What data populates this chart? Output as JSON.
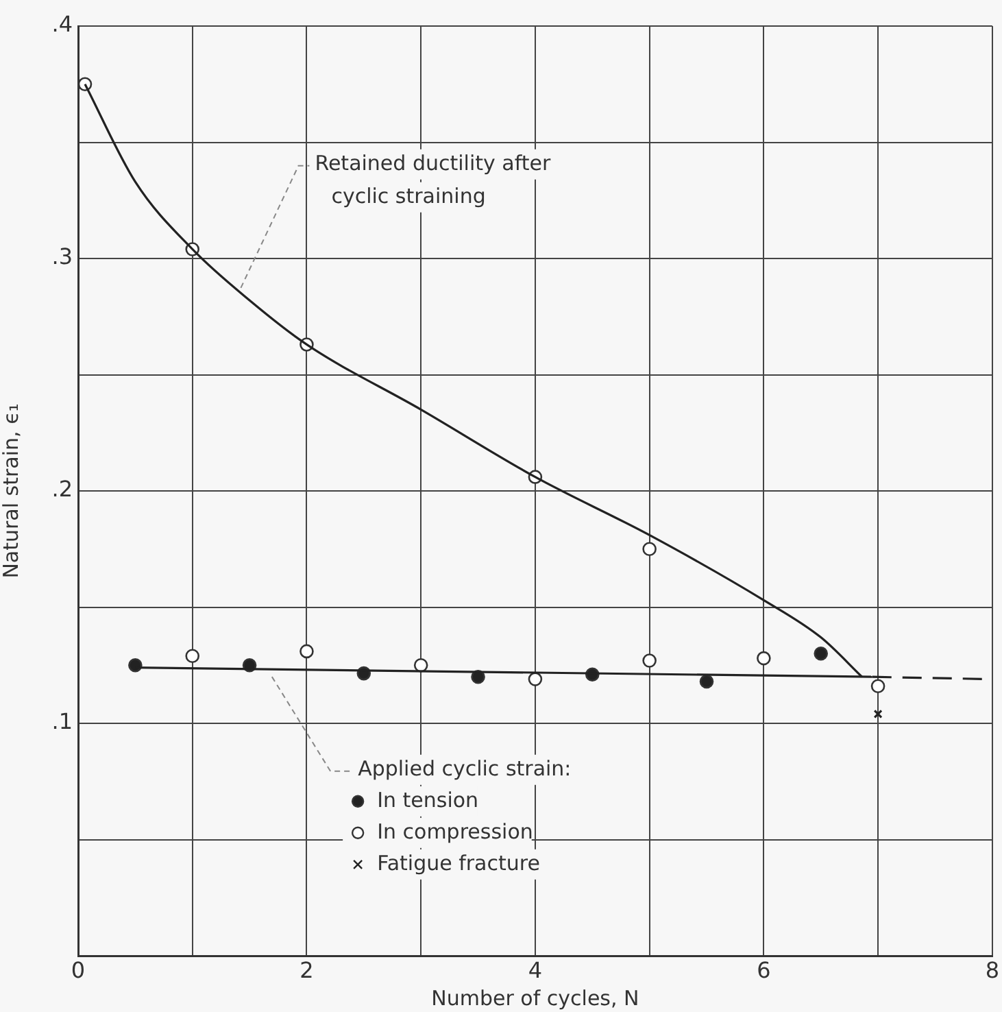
{
  "chart_data": {
    "type": "scatter",
    "xlabel": "Number of cycles, N",
    "ylabel": "Natural strain, ϵ₁",
    "xlim": [
      0,
      8
    ],
    "xticks": [
      0,
      {
        "value": 1,
        "label": null
      },
      2,
      {
        "value": 3,
        "label": null
      },
      4,
      {
        "value": 5,
        "label": null
      },
      6,
      {
        "value": 7,
        "label": null
      },
      8
    ],
    "ylim": [
      0,
      0.4
    ],
    "yticks": [
      {
        "value": 0,
        "label": null
      },
      {
        "value": 0.05,
        "label": null
      },
      {
        "value": 0.1,
        "label": ".1"
      },
      {
        "value": 0.15,
        "label": null
      },
      {
        "value": 0.2,
        "label": ".2"
      },
      {
        "value": 0.25,
        "label": null
      },
      {
        "value": 0.3,
        "label": ".3"
      },
      {
        "value": 0.35,
        "label": null
      },
      {
        "value": 0.4,
        "label": ".4"
      }
    ],
    "grid": true,
    "legend": "bottom",
    "legend_title": "Applied cyclic strain:",
    "annotations": [
      {
        "text": "Retained ductility after cyclic straining",
        "x": 1.4,
        "y": 0.285
      }
    ],
    "series": [
      {
        "type": "line",
        "color": "#222222",
        "marker": "none",
        "line_style": "solid",
        "x": [
          0.06,
          0.5,
          1,
          1.5,
          2,
          3,
          4,
          5,
          6,
          6.5,
          6.86
        ],
        "values": [
          0.375,
          0.333,
          0.304,
          0.282,
          0.263,
          0.235,
          0.206,
          0.181,
          0.153,
          0.137,
          0.12
        ]
      },
      {
        "type": "scatter",
        "color": "#ffffff",
        "marker": "circle",
        "x": [
          0.06,
          1,
          2,
          4,
          5
        ],
        "values": [
          0.375,
          0.304,
          0.263,
          0.206,
          0.175
        ]
      },
      {
        "type": "line",
        "color": "#222222",
        "marker": "none",
        "line_style": "solid",
        "x": [
          0.5,
          6.95
        ],
        "values": [
          0.124,
          0.12
        ]
      },
      {
        "type": "line",
        "color": "#222222",
        "marker": "none",
        "line_style": "dashed",
        "x": [
          6.95,
          8
        ],
        "values": [
          0.12,
          0.119
        ]
      },
      {
        "type": "scatter",
        "name": "In tension",
        "color": "#222222",
        "marker": "circle",
        "x": [
          0.5,
          1.5,
          2.5,
          3.5,
          4.5,
          5.5,
          6.5
        ],
        "values": [
          0.125,
          0.125,
          0.1215,
          0.12,
          0.121,
          0.118,
          0.13
        ]
      },
      {
        "type": "scatter",
        "name": "In compression",
        "color": "#ffffff",
        "marker": "circle",
        "x": [
          1,
          2,
          3,
          4,
          5,
          6,
          7
        ],
        "values": [
          0.129,
          0.131,
          0.125,
          0.119,
          0.127,
          0.128,
          0.116
        ]
      },
      {
        "type": "scatter",
        "name": "Fatigue fracture",
        "color": "#222222",
        "marker": "cross",
        "x": [
          7
        ],
        "values": [
          0.104
        ]
      }
    ]
  }
}
